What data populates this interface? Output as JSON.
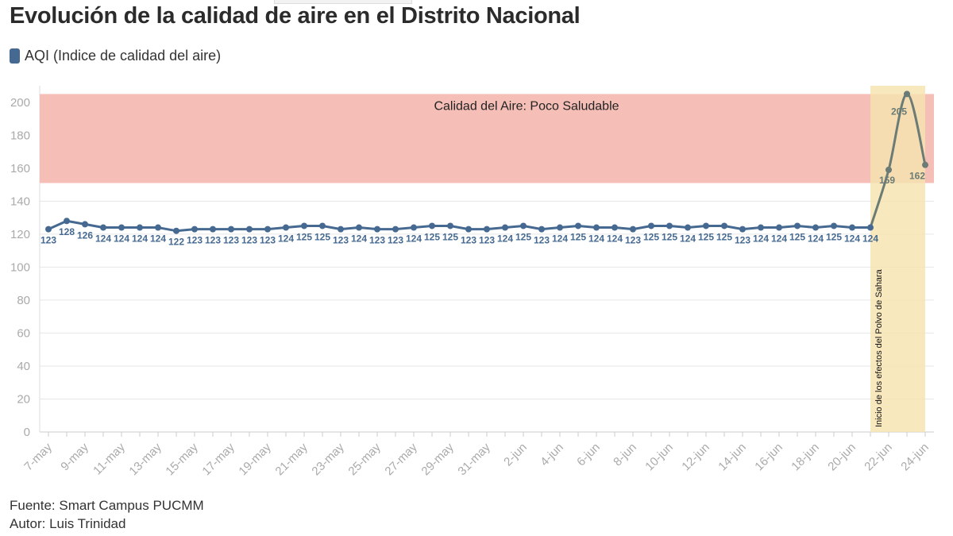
{
  "title": "Evolución de la calidad de aire en el Distrito Nacional",
  "legend": {
    "label": "AQI (Indice de calidad del aire)",
    "color": "#456991"
  },
  "footer": {
    "source": "Fuente: Smart Campus PUCMM",
    "author": "Autor: Luis Trinidad"
  },
  "colors": {
    "series": "#456991",
    "highlight_series": "#6b7b75",
    "band": "#f4bcb3",
    "shade": "#f6e3b0",
    "grid": "#e6e6e6"
  },
  "chart_data": {
    "type": "line",
    "xlabel": "",
    "ylabel": "",
    "ylim": [
      0,
      210
    ],
    "yticks": [
      0,
      20,
      40,
      60,
      80,
      100,
      120,
      140,
      160,
      180,
      200
    ],
    "grid": true,
    "legend_position": "top-left",
    "x": [
      "7-may",
      "8-may",
      "9-may",
      "10-may",
      "11-may",
      "12-may",
      "13-may",
      "14-may",
      "15-may",
      "16-may",
      "17-may",
      "18-may",
      "19-may",
      "20-may",
      "21-may",
      "22-may",
      "23-may",
      "24-may",
      "25-may",
      "26-may",
      "27-may",
      "28-may",
      "29-may",
      "30-may",
      "31-may",
      "1-jun",
      "2-jun",
      "3-jun",
      "4-jun",
      "5-jun",
      "6-jun",
      "7-jun",
      "8-jun",
      "9-jun",
      "10-jun",
      "11-jun",
      "12-jun",
      "13-jun",
      "14-jun",
      "15-jun",
      "16-jun",
      "17-jun",
      "18-jun",
      "19-jun",
      "20-jun",
      "21-jun",
      "22-jun",
      "23-jun",
      "24-jun"
    ],
    "xtick_labels": [
      "7-may",
      "9-may",
      "11-may",
      "13-may",
      "15-may",
      "17-may",
      "19-may",
      "21-may",
      "23-may",
      "25-may",
      "27-may",
      "29-may",
      "31-may",
      "2-jun",
      "4-jun",
      "6-jun",
      "8-jun",
      "10-jun",
      "12-jun",
      "14-jun",
      "16-jun",
      "18-jun",
      "20-jun",
      "22-jun",
      "24-jun"
    ],
    "series": [
      {
        "name": "AQI (Indice de calidad del aire)",
        "values": [
          123,
          128,
          126,
          124,
          124,
          124,
          124,
          122,
          123,
          123,
          123,
          123,
          123,
          124,
          125,
          125,
          123,
          124,
          123,
          123,
          124,
          125,
          125,
          123,
          123,
          124,
          125,
          123,
          124,
          125,
          124,
          124,
          123,
          125,
          125,
          124,
          125,
          125,
          123,
          124,
          124,
          125,
          124,
          125,
          124,
          124,
          159,
          205,
          162
        ]
      }
    ],
    "highlight_start_index": 45,
    "value_labels": {
      "default": [
        123,
        128,
        126,
        124,
        124,
        124,
        124,
        122,
        123,
        123,
        123,
        123,
        123,
        124,
        125,
        125,
        123,
        124,
        123,
        123,
        124,
        125,
        125,
        123,
        123,
        124,
        125,
        123,
        124,
        125,
        124,
        124,
        123,
        125,
        125,
        124,
        125,
        125,
        123,
        124,
        124,
        125,
        124,
        125,
        124,
        124,
        159,
        205,
        162
      ]
    },
    "band": {
      "from": 151,
      "to": 205,
      "label": "Calidad del Aire: Poco Saludable"
    },
    "shaded_region": {
      "from_index": 46,
      "to_index": 48,
      "label": "Inicio de los efectos del Polvo de Sahara"
    }
  }
}
